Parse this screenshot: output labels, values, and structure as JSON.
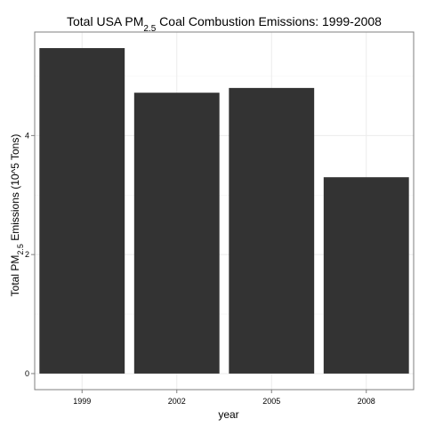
{
  "chart_data": {
    "type": "bar",
    "title": {
      "before_sub": "Total USA PM",
      "sub": "2.5",
      "after_sub": " Coal Combustion Emissions: 1999-2008"
    },
    "xlabel": "year",
    "ylabel": {
      "before_sub": "Total PM",
      "sub": "2.5",
      "after_sub": " Emissions (10^5 Tons)"
    },
    "categories": [
      "1999",
      "2002",
      "2005",
      "2008"
    ],
    "values": [
      5.47,
      4.72,
      4.8,
      3.3
    ],
    "yticks": [
      0,
      2,
      4
    ],
    "ylim": [
      -0.27,
      5.74
    ],
    "grid": true,
    "legend": "none",
    "colors": {
      "bar": "#333333",
      "panel_border": "#7f7f7f",
      "grid_major": "#ebebeb",
      "grid_minor": "#f5f5f5",
      "tick": "#7f7f7f"
    }
  }
}
